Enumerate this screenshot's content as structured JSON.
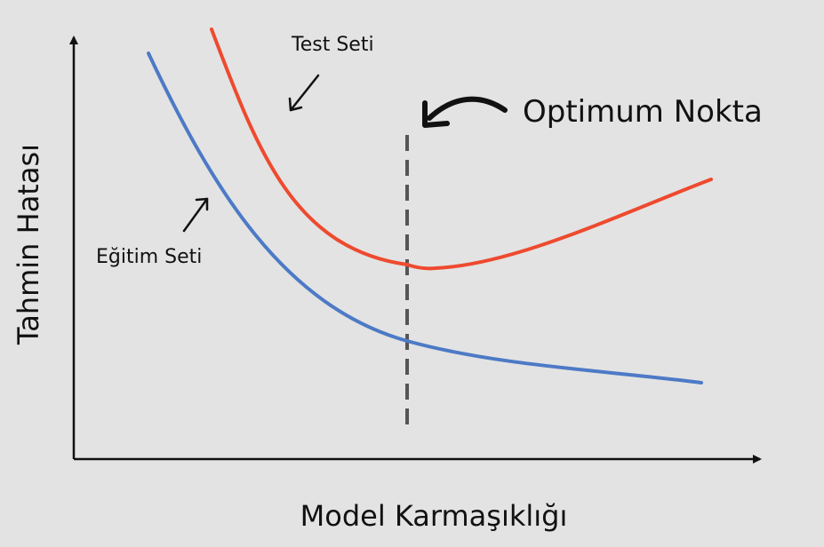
{
  "x_axis_label": "Model Karmaşıklığı",
  "y_axis_label": "Tahmin Hatası",
  "optimum_label": "Optimum Nokta",
  "test_label": "Test Seti",
  "train_label": "Eğitim Seti",
  "colors": {
    "background": "#e3e3e3",
    "test_curve": "#ee4a2f",
    "train_curve": "#4d7ac6",
    "axis": "#111111",
    "optimum_line": "#555555"
  }
}
